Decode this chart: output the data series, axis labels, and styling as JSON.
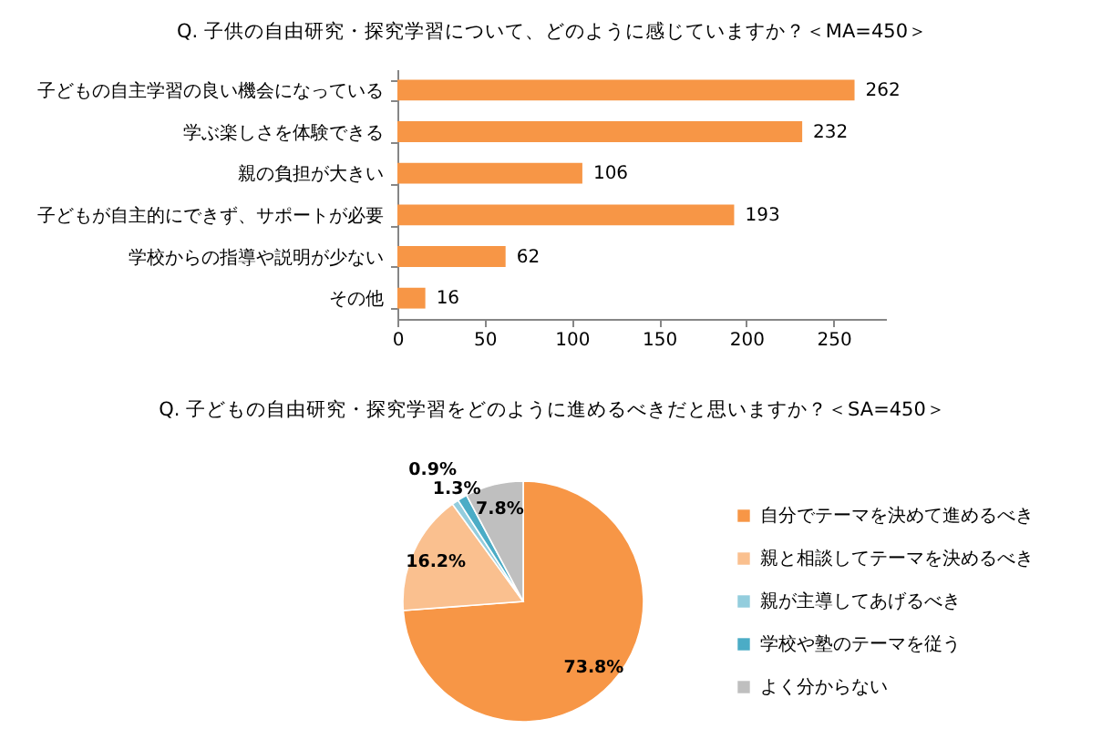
{
  "chart_data": [
    {
      "type": "bar",
      "orientation": "horizontal",
      "title": "Q. 子供の自由研究・探究学習について、どのように感じていますか？＜MA=450＞",
      "categories": [
        "子どもの自主学習の良い機会になっている",
        "学ぶ楽しさを体験できる",
        "親の負担が大きい",
        "子どもが自主的にできず、サポートが必要",
        "学校からの指導や説明が少ない",
        "その他"
      ],
      "values": [
        262,
        232,
        106,
        193,
        62,
        16
      ],
      "color": "#f79646",
      "xlim": [
        0,
        280
      ],
      "xticks": [
        0,
        50,
        100,
        150,
        200,
        250
      ],
      "data_labels": true,
      "grid": false
    },
    {
      "type": "pie",
      "title": "Q. 子どもの自由研究・探究学習をどのように進めるべきだと思いますか？＜SA=450＞",
      "categories": [
        "自分でテーマを決めて進めるべき",
        "親と相談してテーマを決めるべき",
        "親が主導してあげるべき",
        "学校や塾のテーマを従う",
        "よく分からない"
      ],
      "values": [
        73.8,
        16.2,
        0.9,
        1.3,
        7.8
      ],
      "colors": [
        "#f79646",
        "#fac08f",
        "#93cddd",
        "#4bacc6",
        "#bfbfbf"
      ],
      "value_labels": [
        "73.8%",
        "16.2%",
        "0.9%",
        "1.3%",
        "7.8%"
      ],
      "legend": "right"
    }
  ]
}
